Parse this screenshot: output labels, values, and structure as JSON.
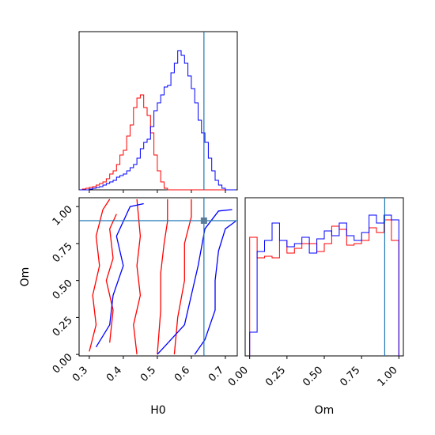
{
  "chart_data": {
    "type": "corner",
    "parameters": [
      "H0",
      "Om"
    ],
    "truth": {
      "H0": 0.637,
      "Om": 0.905
    },
    "colors": {
      "red_series": "#ff0000",
      "blue_series": "#0000ff",
      "truth_line": "#1f77b4",
      "truth_marker": "#5a7d9a"
    },
    "grid": false,
    "panels": [
      {
        "id": "hist-H0",
        "type": "histogram",
        "parameter": "H0",
        "x_range": [
          0.27,
          0.735
        ],
        "y_range": [
          0,
          1.0
        ],
        "y_tick_labels_shown": false,
        "bin_edges": [
          0.27,
          0.28,
          0.29,
          0.3,
          0.31,
          0.32,
          0.33,
          0.34,
          0.35,
          0.36,
          0.37,
          0.38,
          0.39,
          0.4,
          0.41,
          0.42,
          0.43,
          0.44,
          0.45,
          0.46,
          0.47,
          0.48,
          0.49,
          0.5,
          0.51,
          0.52,
          0.53,
          0.54,
          0.55,
          0.56,
          0.57,
          0.58,
          0.59,
          0.6,
          0.61,
          0.62,
          0.63,
          0.64,
          0.65,
          0.66,
          0.67,
          0.68,
          0.69,
          0.7,
          0.71,
          0.72,
          0.73
        ],
        "series": [
          {
            "color": "red",
            "values": [
              0,
              0.005,
              0.01,
              0.015,
              0.02,
              0.03,
              0.04,
              0.05,
              0.07,
              0.1,
              0.12,
              0.16,
              0.22,
              0.25,
              0.34,
              0.41,
              0.52,
              0.58,
              0.6,
              0.52,
              0.47,
              0.36,
              0.22,
              0.12,
              0.05,
              0.01,
              0,
              0,
              0,
              0,
              0,
              0,
              0,
              0,
              0,
              0,
              0,
              0,
              0,
              0,
              0,
              0,
              0,
              0,
              0,
              0
            ]
          },
          {
            "color": "blue",
            "values": [
              0,
              0,
              0,
              0.005,
              0.01,
              0.015,
              0.02,
              0.03,
              0.04,
              0.05,
              0.06,
              0.08,
              0.09,
              0.1,
              0.12,
              0.14,
              0.16,
              0.2,
              0.26,
              0.3,
              0.32,
              0.4,
              0.5,
              0.55,
              0.6,
              0.65,
              0.66,
              0.74,
              0.8,
              0.88,
              0.85,
              0.8,
              0.72,
              0.64,
              0.55,
              0.44,
              0.36,
              0.3,
              0.2,
              0.12,
              0.06,
              0.03,
              0.01,
              0,
              0,
              0
            ]
          }
        ]
      },
      {
        "id": "contour-H0-Om",
        "type": "contour",
        "x_parameter": "H0",
        "y_parameter": "Om",
        "x_range": [
          0.27,
          0.735
        ],
        "y_range": [
          -0.01,
          1.06
        ],
        "x_ticks": [
          0.3,
          0.4,
          0.5,
          0.6,
          0.7
        ],
        "x_tick_labels": [
          "0.3",
          "0.4",
          "0.5",
          "0.6",
          "0.7"
        ],
        "y_ticks": [
          0.0,
          0.25,
          0.5,
          0.75,
          1.0
        ],
        "y_tick_labels": [
          "0.00",
          "0.25",
          "0.50",
          "0.75",
          "1.00"
        ],
        "xlabel": "H0",
        "ylabel": "Om",
        "contours": [
          {
            "color": "red",
            "points": [
              [
                0.3,
                0.02
              ],
              [
                0.32,
                0.2
              ],
              [
                0.31,
                0.4
              ],
              [
                0.33,
                0.6
              ],
              [
                0.32,
                0.8
              ],
              [
                0.34,
                0.98
              ],
              [
                0.36,
                1.05
              ]
            ]
          },
          {
            "color": "red",
            "points": [
              [
                0.36,
                0.08
              ],
              [
                0.37,
                0.3
              ],
              [
                0.35,
                0.5
              ],
              [
                0.37,
                0.65
              ],
              [
                0.36,
                0.85
              ],
              [
                0.38,
                0.95
              ]
            ]
          },
          {
            "color": "red",
            "points": [
              [
                0.44,
                0.0
              ],
              [
                0.43,
                0.2
              ],
              [
                0.45,
                0.4
              ],
              [
                0.44,
                0.6
              ],
              [
                0.45,
                0.8
              ],
              [
                0.44,
                1.05
              ]
            ]
          },
          {
            "color": "red",
            "points": [
              [
                0.5,
                0.0
              ],
              [
                0.51,
                0.3
              ],
              [
                0.51,
                0.55
              ],
              [
                0.52,
                0.75
              ],
              [
                0.53,
                0.9
              ],
              [
                0.53,
                1.05
              ]
            ]
          },
          {
            "color": "red",
            "points": [
              [
                0.55,
                0.0
              ],
              [
                0.56,
                0.25
              ],
              [
                0.58,
                0.5
              ],
              [
                0.58,
                0.75
              ],
              [
                0.6,
                0.93
              ],
              [
                0.6,
                1.05
              ]
            ]
          },
          {
            "color": "blue",
            "points": [
              [
                0.32,
                0.05
              ],
              [
                0.36,
                0.2
              ],
              [
                0.37,
                0.4
              ],
              [
                0.4,
                0.6
              ],
              [
                0.38,
                0.8
              ],
              [
                0.42,
                1.0
              ],
              [
                0.46,
                1.02
              ]
            ]
          },
          {
            "color": "blue",
            "points": [
              [
                0.5,
                0.0
              ],
              [
                0.52,
                0.05
              ],
              [
                0.58,
                0.2
              ],
              [
                0.6,
                0.4
              ],
              [
                0.62,
                0.6
              ],
              [
                0.64,
                0.85
              ],
              [
                0.68,
                0.97
              ],
              [
                0.72,
                0.98
              ]
            ]
          },
          {
            "color": "blue",
            "points": [
              [
                0.61,
                0.0
              ],
              [
                0.64,
                0.1
              ],
              [
                0.67,
                0.3
              ],
              [
                0.67,
                0.5
              ],
              [
                0.68,
                0.7
              ],
              [
                0.7,
                0.85
              ],
              [
                0.73,
                0.9
              ]
            ]
          }
        ]
      },
      {
        "id": "hist-Om",
        "type": "histogram",
        "parameter": "Om",
        "x_range": [
          -0.03,
          1.03
        ],
        "y_range": [
          0,
          1.0
        ],
        "x_ticks": [
          0.0,
          0.25,
          0.5,
          0.75,
          1.0
        ],
        "x_tick_labels": [
          "0.00",
          "0.25",
          "0.50",
          "0.75",
          "1.00"
        ],
        "xlabel": "Om",
        "y_tick_labels_shown": false,
        "bin_edges": [
          0.0,
          0.05,
          0.1,
          0.15,
          0.2,
          0.25,
          0.3,
          0.35,
          0.4,
          0.45,
          0.5,
          0.55,
          0.6,
          0.65,
          0.7,
          0.75,
          0.8,
          0.85,
          0.9,
          0.95,
          1.0
        ],
        "series": [
          {
            "color": "red",
            "values": [
              0.75,
              0.62,
              0.63,
              0.62,
              0.73,
              0.65,
              0.68,
              0.71,
              0.71,
              0.66,
              0.71,
              0.82,
              0.8,
              0.7,
              0.71,
              0.73,
              0.81,
              0.78,
              0.86,
              0.73
            ]
          },
          {
            "color": "blue",
            "values": [
              0.15,
              0.66,
              0.73,
              0.84,
              0.73,
              0.69,
              0.71,
              0.75,
              0.65,
              0.74,
              0.79,
              0.76,
              0.84,
              0.76,
              0.73,
              0.78,
              0.89,
              0.84,
              0.89,
              0.86
            ]
          }
        ]
      }
    ]
  }
}
